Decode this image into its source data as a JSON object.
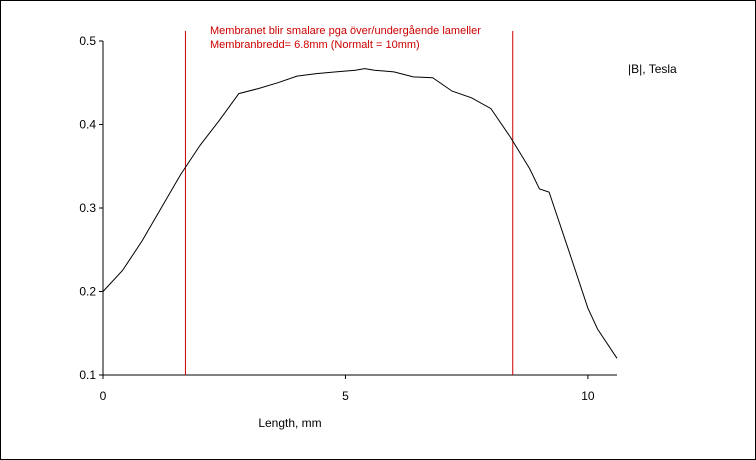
{
  "chart_data": {
    "type": "line",
    "title": "",
    "xlabel": "Length, mm",
    "ylabel": "",
    "xlim": [
      0,
      10.6
    ],
    "ylim": [
      0.1,
      0.5
    ],
    "x_ticks": [
      0,
      5,
      10
    ],
    "y_ticks": [
      0.1,
      0.2,
      0.3,
      0.4,
      0.5
    ],
    "x_tick_labels": [
      "0",
      "5",
      "10"
    ],
    "y_tick_labels": [
      "0.1",
      "0.2",
      "0.3",
      "0.4",
      "0.5"
    ],
    "grid": false,
    "legend": {
      "placement": "top-right",
      "entries": [
        "|B|, Tesla"
      ]
    },
    "series": [
      {
        "name": "|B|, Tesla",
        "color": "#000000",
        "x": [
          0,
          0.4,
          0.8,
          1.2,
          1.6,
          2.0,
          2.4,
          2.8,
          3.2,
          3.6,
          4.0,
          4.4,
          4.8,
          5.2,
          5.4,
          5.6,
          6.0,
          6.4,
          6.8,
          7.2,
          7.6,
          8.0,
          8.4,
          8.8,
          9.0,
          9.2,
          9.6,
          10.0,
          10.2,
          10.6
        ],
        "y": [
          0.2,
          0.225,
          0.26,
          0.3,
          0.34,
          0.375,
          0.405,
          0.437,
          0.443,
          0.45,
          0.458,
          0.461,
          0.463,
          0.465,
          0.467,
          0.465,
          0.463,
          0.457,
          0.456,
          0.44,
          0.432,
          0.419,
          0.385,
          0.347,
          0.323,
          0.319,
          0.25,
          0.18,
          0.155,
          0.12
        ]
      }
    ],
    "vlines": [
      {
        "x": 1.7,
        "color": "#cc0000"
      },
      {
        "x": 8.45,
        "color": "#cc0000"
      }
    ],
    "annotations": [
      {
        "text": "Membranet blir smalare pga över/undergående lameller",
        "color": "#cc0000"
      },
      {
        "text": "Membranbredd= 6.8mm (Normalt = 10mm)",
        "color": "#cc0000"
      }
    ]
  }
}
